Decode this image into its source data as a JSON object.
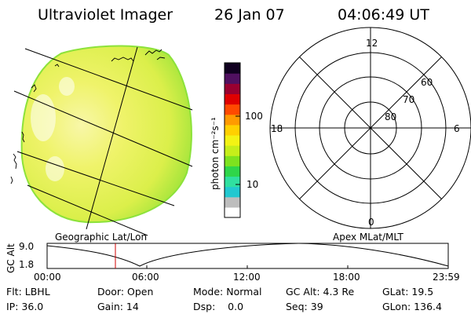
{
  "header": {
    "instrument": "Ultraviolet Imager",
    "date": "26 Jan 07",
    "time": "04:06:49 UT"
  },
  "colorbar": {
    "unit_label": "photon cm⁻²s⁻¹",
    "ticks": [
      "100",
      "10"
    ],
    "colors": [
      "#ffffff",
      "#bdbdbd",
      "#22c8d0",
      "#30e0a0",
      "#2fd64a",
      "#7ee21f",
      "#c6ee1a",
      "#f3f314",
      "#ffd000",
      "#ff9a00",
      "#ff4a00",
      "#e00000",
      "#9a0030",
      "#501060",
      "#100020"
    ]
  },
  "earth_view": {
    "fill_color": "#e8f046",
    "edge_color": "#8ce23a"
  },
  "polar_plot": {
    "clock_labels": {
      "top": "12",
      "bottom": "0",
      "left": "18",
      "right": "6"
    },
    "lat_labels": [
      "60",
      "70",
      "80"
    ]
  },
  "altitude_plot": {
    "left_title": "Geographic Lat/Lon",
    "right_title": "Apex MLat/MLT",
    "y_axis_label": "GC Alt",
    "y_ticks": [
      "9.0",
      "1.8"
    ],
    "x_ticks": [
      "00:00",
      "06:00",
      "12:00",
      "18:00",
      "23:59"
    ],
    "marker_color": "#d00000"
  },
  "info": {
    "row1": {
      "flt": "Flt: LBHL",
      "door": "Door: Open",
      "mode": "Mode: Normal",
      "gcalt": "GC Alt: 4.3 Re",
      "glat": "GLat: 19.5"
    },
    "row2": {
      "ip": "IP: 36.0",
      "gain": "Gain: 14",
      "dsp": "Dsp:    0.0",
      "seq": "Seq: 39",
      "glon": "GLon: 136.4"
    }
  }
}
